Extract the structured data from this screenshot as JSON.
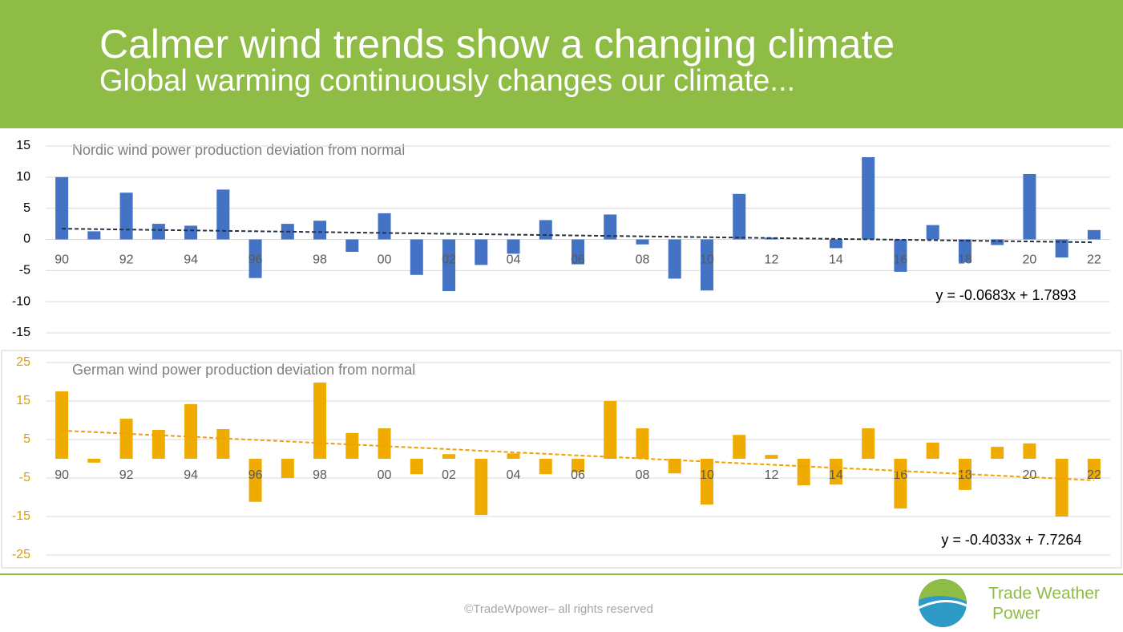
{
  "header": {
    "title": "Calmer wind trends show a changing climate",
    "subtitle": "Global warming continuously changes our climate..."
  },
  "chart_data": [
    {
      "type": "bar",
      "title": "Nordic wind power production deviation from normal",
      "categories": [
        "90",
        null,
        "92",
        null,
        "94",
        null,
        "96",
        null,
        "98",
        null,
        "00",
        null,
        "02",
        null,
        "04",
        null,
        "06",
        null,
        "08",
        null,
        "10",
        null,
        "12",
        null,
        "14",
        null,
        "16",
        null,
        "18",
        null,
        "20",
        null,
        "22"
      ],
      "values": [
        10,
        1.3,
        7.5,
        2.5,
        2.2,
        8,
        -6.2,
        2.5,
        3,
        -2,
        4.2,
        -5.7,
        -8.3,
        -4.1,
        -2.3,
        3.1,
        -4,
        4,
        -0.8,
        -6.3,
        -8.2,
        7.3,
        0.3,
        0,
        -1.4,
        13.2,
        -5.2,
        2.3,
        -3.7,
        -0.9,
        10.5,
        -2.9,
        1.5
      ],
      "color": "#4472c4",
      "tick_color": "#000000",
      "ylim": [
        -15,
        15
      ],
      "yticks": [
        -15,
        -10,
        -5,
        0,
        5,
        10,
        15
      ],
      "grid": true,
      "trendline": {
        "slope": -0.0683,
        "intercept": 1.7893,
        "label": "y = -0.0683x + 1.7893",
        "color": "#243447"
      }
    },
    {
      "type": "bar",
      "title": "German wind power production deviation from normal",
      "categories": [
        "90",
        null,
        "92",
        null,
        "94",
        null,
        "96",
        null,
        "98",
        null,
        "00",
        null,
        "02",
        null,
        "04",
        null,
        "06",
        null,
        "08",
        null,
        "10",
        null,
        "12",
        null,
        "14",
        null,
        "16",
        null,
        "18",
        null,
        "20",
        null,
        "22"
      ],
      "values": [
        17.5,
        -1,
        10.4,
        7.5,
        14.2,
        7.7,
        -11.2,
        -5,
        19.8,
        6.7,
        7.9,
        -4,
        1.2,
        -14.6,
        1.4,
        -4,
        -3.5,
        15,
        7.9,
        -3.8,
        -11.9,
        6.2,
        1,
        -6.9,
        -6.7,
        7.9,
        -12.9,
        4.2,
        -8.1,
        3.1,
        4,
        -15,
        -5.2
      ],
      "color": "#f0ab00",
      "tick_color": "#e69b00",
      "ylim": [
        -25,
        25
      ],
      "yticks": [
        -25,
        -15,
        -5,
        5,
        15,
        25
      ],
      "grid": true,
      "trendline": {
        "slope": -0.4033,
        "intercept": 7.7264,
        "label": "y = -0.4033x + 7.7264",
        "color": "#f0a000"
      }
    }
  ],
  "footer": {
    "copyright": "©TradeWpower– all rights reserved",
    "logo_lines": [
      "Trade Weather",
      "Power"
    ]
  }
}
